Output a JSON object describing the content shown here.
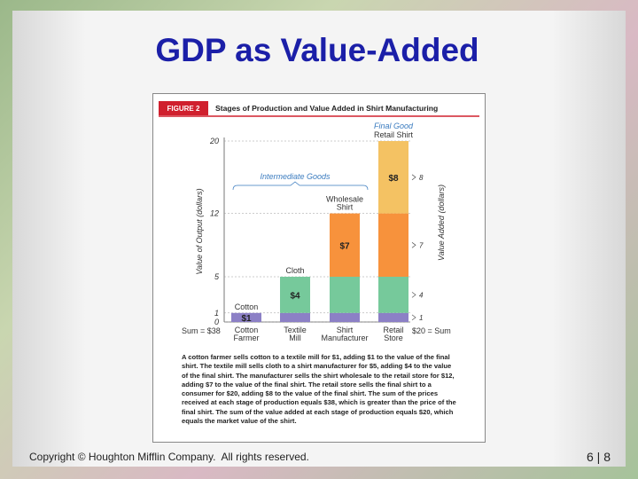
{
  "title": "GDP as Value-Added",
  "figure": {
    "label": "FIGURE 2",
    "heading": "Stages of Production and Value Added in Shirt Manufacturing",
    "caption": "A cotton farmer sells cotton to a textile mill for $1, adding $1 to the value of the final shirt. The textile mill sells cloth to a shirt manufacturer for $5, adding $4 to the value of the final shirt. The manufacturer sells the shirt wholesale to the retail store for $12, adding $7 to the value of the final shirt. The retail store sells the final shirt to a consumer for $20, adding $8 to the value of the final shirt. The sum of the prices received at each stage of production equals $38, which is greater than the price of the final shirt. The sum of the value added at each stage of production equals $20, which equals the market value of the shirt."
  },
  "chart_data": {
    "type": "bar",
    "stacked": true,
    "categories": [
      "Cotton Farmer",
      "Textile Mill",
      "Shirt Manufacturer",
      "Retail Store"
    ],
    "bar_labels": [
      "Cotton",
      "Cloth",
      "Wholesale Shirt",
      "Retail Shirt"
    ],
    "final_good_label": "Final Good",
    "intermediate_label": "Intermediate Goods",
    "ylabel": "Value of Output (dollars)",
    "y2label": "Value Added (dollars)",
    "value_added_markers": [
      1,
      4,
      7,
      8
    ],
    "left_sum": "Sum = $38",
    "right_sum": "$20 = Sum",
    "ylim": [
      0,
      20
    ],
    "yticks": [
      0,
      1,
      5,
      12,
      20
    ],
    "series": [
      {
        "color": "#8c80c6",
        "values": [
          1,
          1,
          1,
          1
        ],
        "value_labels": [
          "$1",
          null,
          null,
          null
        ]
      },
      {
        "color": "#76c99b",
        "values": [
          null,
          4,
          4,
          4
        ],
        "value_labels": [
          null,
          "$4",
          null,
          null
        ]
      },
      {
        "color": "#f7923c",
        "values": [
          null,
          null,
          7,
          7
        ],
        "value_labels": [
          null,
          null,
          "$7",
          null
        ]
      },
      {
        "color": "#f4c263",
        "values": [
          null,
          null,
          null,
          8
        ],
        "value_labels": [
          null,
          null,
          null,
          "$8"
        ]
      }
    ]
  },
  "footer": {
    "copyright": "Copyright © Houghton Mifflin Company.  All rights reserved.",
    "page": "6 | 8"
  }
}
